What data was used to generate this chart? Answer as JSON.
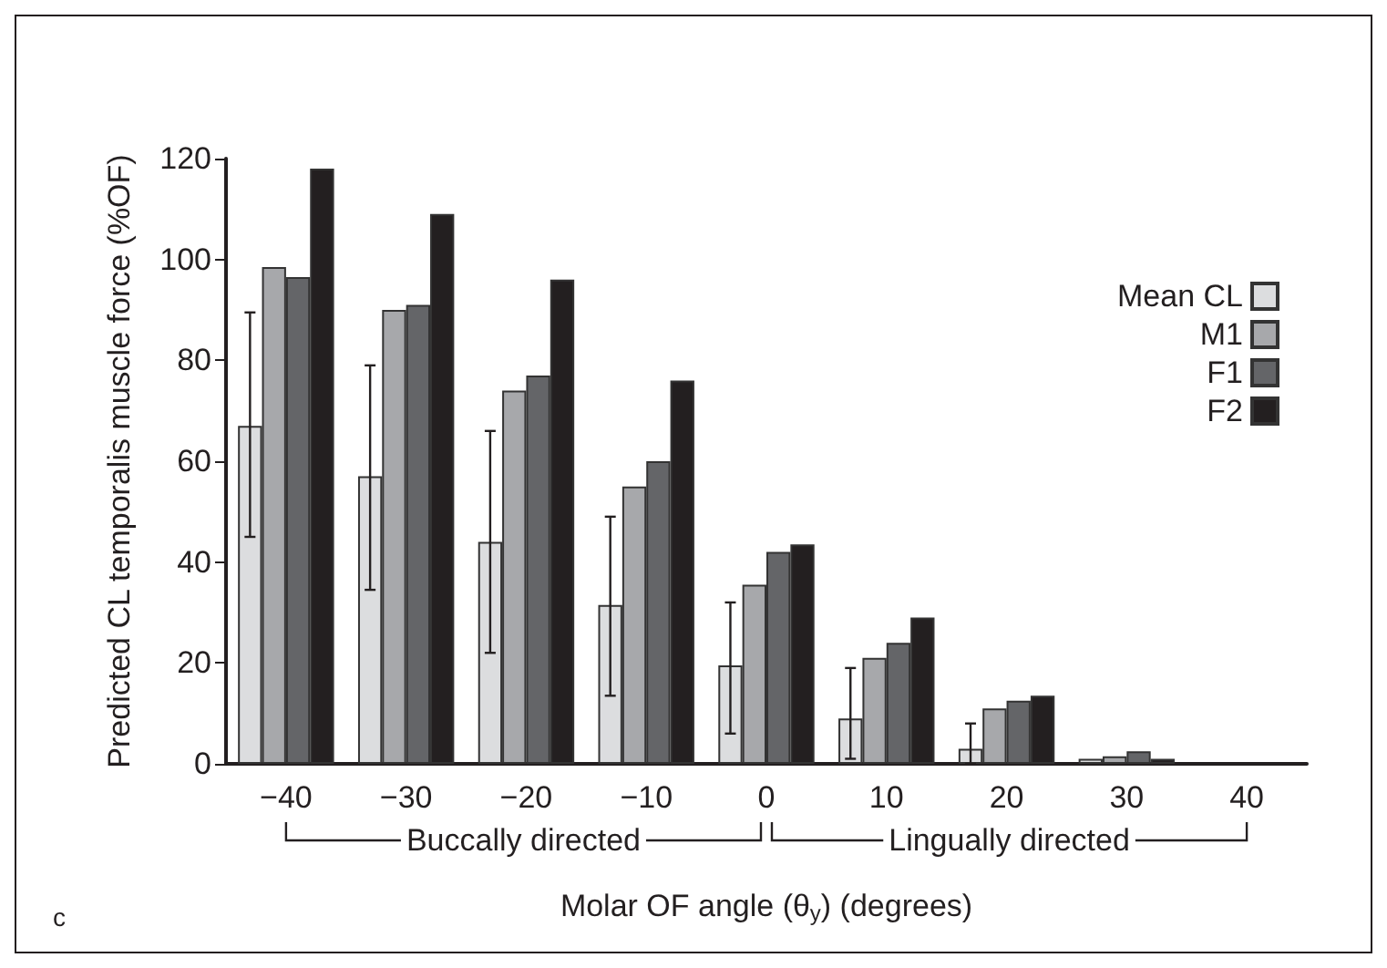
{
  "chart_data": {
    "type": "bar",
    "ylabel": "Predicted CL temporalis muscle force (%OF)",
    "xlabel": "Molar OF angle (θ$_{y}$) (degrees)",
    "categories": [
      "−40",
      "−30",
      "−20",
      "−10",
      "0",
      "10",
      "20",
      "30",
      "40"
    ],
    "series": [
      {
        "name": "Mean CL",
        "color": "#dcdddf",
        "values": [
          67,
          57,
          44,
          31.5,
          19.5,
          9,
          3,
          1,
          null
        ],
        "errors": [
          [
            45,
            89.5
          ],
          [
            34.5,
            79
          ],
          [
            22,
            66
          ],
          [
            13.5,
            49
          ],
          [
            6,
            32
          ],
          [
            1,
            19
          ],
          [
            0,
            8
          ],
          null,
          null
        ]
      },
      {
        "name": "M1",
        "color": "#a7a8ab",
        "values": [
          98.5,
          90,
          74,
          55,
          35.5,
          21,
          11,
          1.5,
          null
        ]
      },
      {
        "name": "F1",
        "color": "#646568",
        "values": [
          96.5,
          91,
          77,
          60,
          42,
          24,
          12.5,
          2.5,
          null
        ]
      },
      {
        "name": "F2",
        "color": "#231f20",
        "values": [
          118,
          109,
          96,
          76,
          43.5,
          29,
          13.5,
          1,
          null
        ]
      }
    ],
    "ylim": [
      0,
      120
    ],
    "yticks": [
      0,
      20,
      40,
      60,
      80,
      100,
      120
    ],
    "grid": false,
    "legend": "top right",
    "annotations": [
      "Buccally directed",
      "Lingually directed",
      "c"
    ]
  }
}
